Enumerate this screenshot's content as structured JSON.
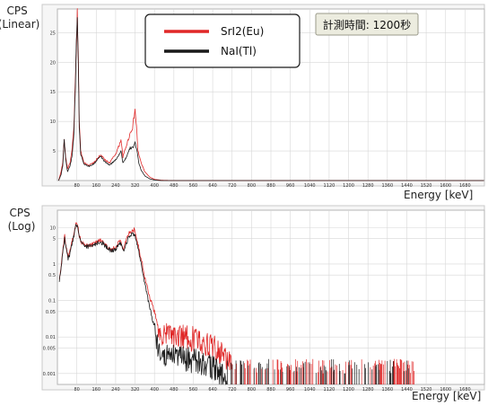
{
  "colors": {
    "sri2": "#e02828",
    "nai": "#1a1a1a",
    "grid": "#d7d7d7",
    "plot_bg": "#ffffff",
    "badge_bg": "#ececdf"
  },
  "annotation": {
    "measurement_time": "計測時間: 1200秒"
  },
  "chart_data": [
    {
      "type": "line",
      "ylabel": "CPS\n(Linear)",
      "ylabel_lines": [
        "CPS",
        "(Linear)"
      ],
      "xlabel": "Energy [keV]",
      "xlim": [
        0,
        1760
      ],
      "ylim": [
        0,
        29
      ],
      "yscale": "linear",
      "grid": true,
      "x_ticks": [
        "80",
        "160",
        "240",
        "320",
        "400",
        "480",
        "560",
        "640",
        "720",
        "800",
        "880",
        "960",
        "1040",
        "1120",
        "1200",
        "1280",
        "1360",
        "1440",
        "1520",
        "1600",
        "1680"
      ],
      "y_ticks": [
        {
          "value": 5,
          "label": "5"
        },
        {
          "value": 10,
          "label": "10"
        },
        {
          "value": 15,
          "label": "15"
        },
        {
          "value": 20,
          "label": "20"
        },
        {
          "value": 25,
          "label": "25"
        }
      ],
      "legend": {
        "position": "top-center",
        "entries": [
          "SrI2(Eu)",
          "NaI(Tl)"
        ]
      },
      "series": [
        {
          "name": "SrI2(Eu)",
          "color_key": "sri2",
          "points": [
            [
              5,
              0
            ],
            [
              15,
              1.5
            ],
            [
              22,
              3
            ],
            [
              28,
              7
            ],
            [
              34,
              4
            ],
            [
              42,
              2
            ],
            [
              52,
              3
            ],
            [
              60,
              5
            ],
            [
              68,
              9
            ],
            [
              74,
              17
            ],
            [
              78,
              22
            ],
            [
              82,
              28
            ],
            [
              86,
              22
            ],
            [
              90,
              10
            ],
            [
              96,
              5
            ],
            [
              110,
              3
            ],
            [
              130,
              2.6
            ],
            [
              150,
              3
            ],
            [
              170,
              4
            ],
            [
              180,
              4.3
            ],
            [
              195,
              3.5
            ],
            [
              215,
              3
            ],
            [
              240,
              4.5
            ],
            [
              255,
              6
            ],
            [
              262,
              7
            ],
            [
              270,
              4
            ],
            [
              285,
              6
            ],
            [
              300,
              8
            ],
            [
              310,
              9
            ],
            [
              320,
              12
            ],
            [
              326,
              9
            ],
            [
              332,
              5
            ],
            [
              345,
              3
            ],
            [
              360,
              1.5
            ],
            [
              380,
              0.6
            ],
            [
              400,
              0.2
            ],
            [
              430,
              0.05
            ],
            [
              480,
              0
            ],
            [
              1760,
              0
            ]
          ]
        },
        {
          "name": "NaI(Tl)",
          "color_key": "nai",
          "points": [
            [
              5,
              0
            ],
            [
              15,
              1
            ],
            [
              22,
              2.5
            ],
            [
              28,
              7
            ],
            [
              34,
              3.5
            ],
            [
              42,
              1.5
            ],
            [
              52,
              2.5
            ],
            [
              60,
              4
            ],
            [
              68,
              8
            ],
            [
              74,
              16
            ],
            [
              78,
              23
            ],
            [
              82,
              28.6
            ],
            [
              86,
              20
            ],
            [
              90,
              9
            ],
            [
              96,
              4.5
            ],
            [
              110,
              2.8
            ],
            [
              130,
              2.4
            ],
            [
              150,
              2.8
            ],
            [
              170,
              3.8
            ],
            [
              180,
              4
            ],
            [
              195,
              3.2
            ],
            [
              215,
              2.6
            ],
            [
              240,
              3.5
            ],
            [
              255,
              4.5
            ],
            [
              262,
              5
            ],
            [
              270,
              3
            ],
            [
              285,
              4
            ],
            [
              300,
              5.5
            ],
            [
              310,
              5.5
            ],
            [
              320,
              6.5
            ],
            [
              328,
              5
            ],
            [
              335,
              3
            ],
            [
              345,
              1.8
            ],
            [
              360,
              0.8
            ],
            [
              380,
              0.3
            ],
            [
              400,
              0.1
            ],
            [
              430,
              0
            ],
            [
              1760,
              0
            ]
          ]
        }
      ]
    },
    {
      "type": "line",
      "ylabel": "CPS\n(Log)",
      "ylabel_lines": [
        "CPS",
        "(Log)"
      ],
      "xlabel": "Energy [keV]",
      "xlim": [
        0,
        1760
      ],
      "ylim": [
        0.0005,
        30
      ],
      "yscale": "log",
      "grid": true,
      "x_ticks": [
        "80",
        "160",
        "240",
        "320",
        "400",
        "480",
        "560",
        "640",
        "720",
        "800",
        "880",
        "960",
        "1040",
        "1120",
        "1200",
        "1280",
        "1360",
        "1440",
        "1520",
        "1600",
        "1680"
      ],
      "y_ticks": [
        {
          "value": 10,
          "label": "10"
        },
        {
          "value": 5,
          "label": "5"
        },
        {
          "value": 1,
          "label": "1"
        },
        {
          "value": 0.5,
          "label": "0.5"
        },
        {
          "value": 0.1,
          "label": "0.1"
        },
        {
          "value": 0.05,
          "label": "0.05"
        },
        {
          "value": 0.01,
          "label": "0.01"
        },
        {
          "value": 0.005,
          "label": "0.005"
        },
        {
          "value": 0.001,
          "label": "0.001"
        }
      ],
      "legend": {
        "position": "none",
        "entries": []
      },
      "series": [
        {
          "name": "SrI2(Eu)",
          "color_key": "sri2",
          "points": [
            [
              8,
              0.4
            ],
            [
              16,
              1
            ],
            [
              24,
              3
            ],
            [
              30,
              6
            ],
            [
              36,
              3
            ],
            [
              44,
              1.5
            ],
            [
              54,
              2.5
            ],
            [
              62,
              4.5
            ],
            [
              70,
              8
            ],
            [
              78,
              14
            ],
            [
              84,
              11
            ],
            [
              90,
              6
            ],
            [
              100,
              3.8
            ],
            [
              120,
              3.2
            ],
            [
              150,
              3.5
            ],
            [
              170,
              4.5
            ],
            [
              185,
              4.2
            ],
            [
              200,
              3.2
            ],
            [
              220,
              2.5
            ],
            [
              240,
              2.8
            ],
            [
              255,
              4.5
            ],
            [
              262,
              4
            ],
            [
              270,
              2.5
            ],
            [
              282,
              4
            ],
            [
              296,
              7
            ],
            [
              310,
              8
            ],
            [
              318,
              9
            ],
            [
              322,
              6
            ],
            [
              330,
              4
            ],
            [
              340,
              2
            ],
            [
              350,
              1
            ],
            [
              360,
              0.45
            ],
            [
              372,
              0.2
            ],
            [
              385,
              0.1
            ],
            [
              400,
              0.05
            ],
            [
              410,
              0.025
            ],
            [
              420,
              0.015
            ],
            [
              430,
              0.012
            ],
            [
              450,
              0.0115
            ],
            [
              470,
              0.011
            ],
            [
              490,
              0.0105
            ],
            [
              510,
              0.01
            ],
            [
              530,
              0.0095
            ],
            [
              550,
              0.009
            ],
            [
              570,
              0.0085
            ],
            [
              590,
              0.008
            ],
            [
              610,
              0.0068
            ],
            [
              630,
              0.0056
            ],
            [
              650,
              0.0047
            ],
            [
              670,
              0.0038
            ],
            [
              690,
              0.0028
            ],
            [
              710,
              0.002
            ],
            [
              720,
              0.0012
            ]
          ]
        },
        {
          "name": "NaI(Tl)",
          "color_key": "nai",
          "points": [
            [
              8,
              0.35
            ],
            [
              16,
              0.9
            ],
            [
              24,
              2.6
            ],
            [
              30,
              5.2
            ],
            [
              36,
              2.6
            ],
            [
              44,
              1.3
            ],
            [
              54,
              2.2
            ],
            [
              62,
              4
            ],
            [
              70,
              7
            ],
            [
              78,
              13
            ],
            [
              84,
              10
            ],
            [
              90,
              5.5
            ],
            [
              100,
              3.5
            ],
            [
              120,
              3
            ],
            [
              150,
              3.2
            ],
            [
              170,
              4
            ],
            [
              185,
              3.8
            ],
            [
              200,
              3
            ],
            [
              220,
              2.3
            ],
            [
              240,
              2.5
            ],
            [
              255,
              3.8
            ],
            [
              262,
              3.5
            ],
            [
              270,
              2.2
            ],
            [
              282,
              3.5
            ],
            [
              296,
              6
            ],
            [
              310,
              6.5
            ],
            [
              318,
              6.8
            ],
            [
              322,
              5
            ],
            [
              330,
              3
            ],
            [
              340,
              1.5
            ],
            [
              350,
              0.7
            ],
            [
              360,
              0.3
            ],
            [
              372,
              0.12
            ],
            [
              385,
              0.05
            ],
            [
              395,
              0.025
            ],
            [
              402,
              0.02
            ],
            [
              408,
              0.009
            ],
            [
              420,
              0.004
            ],
            [
              440,
              0.0035
            ],
            [
              480,
              0.003
            ],
            [
              520,
              0.0026
            ],
            [
              560,
              0.0022
            ],
            [
              600,
              0.0018
            ],
            [
              640,
              0.0014
            ],
            [
              680,
              0.001
            ],
            [
              700,
              0.0008
            ]
          ]
        }
      ]
    }
  ]
}
